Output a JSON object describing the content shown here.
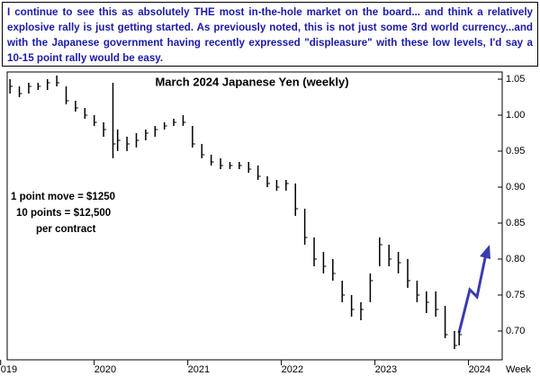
{
  "chart_data": {
    "type": "ohlc",
    "note": "I continue to see this as absolutely THE most in-the-hole market on the board... and think a relatively explosive rally is just getting started. As previously noted, this is not just some 3rd world currency...and with the Japanese government having recently expressed \"displeasure\" with these low levels, I'd say a 10-15 point rally would be easy.",
    "title": "March 2024 Japanese Yen (weekly)",
    "annotations": [
      "1 point move = $1250",
      "10 points = $12,500",
      "per contract"
    ],
    "x_label": "Week",
    "x": [
      2019.1,
      2019.2,
      2019.3,
      2019.4,
      2019.5,
      2019.6,
      2019.7,
      2019.8,
      2019.9,
      2020.0,
      2020.1,
      2020.2,
      2020.25,
      2020.35,
      2020.45,
      2020.55,
      2020.65,
      2020.75,
      2020.85,
      2020.95,
      2021.05,
      2021.15,
      2021.25,
      2021.35,
      2021.45,
      2021.55,
      2021.65,
      2021.75,
      2021.85,
      2021.95,
      2022.05,
      2022.15,
      2022.25,
      2022.35,
      2022.45,
      2022.55,
      2022.65,
      2022.75,
      2022.85,
      2022.95,
      2023.05,
      2023.15,
      2023.25,
      2023.35,
      2023.45,
      2023.55,
      2023.65,
      2023.75,
      2023.85,
      2023.9
    ],
    "high": [
      1.05,
      1.04,
      1.045,
      1.045,
      1.05,
      1.055,
      1.04,
      1.02,
      1.01,
      1.0,
      0.99,
      1.045,
      0.98,
      0.97,
      0.975,
      0.98,
      0.985,
      0.99,
      0.995,
      1.0,
      0.985,
      0.96,
      0.945,
      0.94,
      0.935,
      0.935,
      0.935,
      0.93,
      0.915,
      0.91,
      0.91,
      0.905,
      0.87,
      0.83,
      0.81,
      0.8,
      0.77,
      0.75,
      0.74,
      0.78,
      0.83,
      0.82,
      0.81,
      0.8,
      0.77,
      0.755,
      0.755,
      0.735,
      0.7,
      0.7
    ],
    "low": [
      1.03,
      1.025,
      1.03,
      1.035,
      1.035,
      1.04,
      1.015,
      1.005,
      0.995,
      0.985,
      0.97,
      0.94,
      0.95,
      0.95,
      0.955,
      0.965,
      0.97,
      0.98,
      0.985,
      0.985,
      0.955,
      0.94,
      0.93,
      0.925,
      0.925,
      0.925,
      0.92,
      0.91,
      0.9,
      0.895,
      0.895,
      0.86,
      0.82,
      0.79,
      0.78,
      0.77,
      0.74,
      0.72,
      0.715,
      0.74,
      0.79,
      0.79,
      0.78,
      0.76,
      0.74,
      0.725,
      0.72,
      0.69,
      0.675,
      0.68
    ],
    "close": [
      1.04,
      1.03,
      1.04,
      1.04,
      1.045,
      1.045,
      1.02,
      1.01,
      1.0,
      0.99,
      0.98,
      0.96,
      0.965,
      0.96,
      0.965,
      0.975,
      0.98,
      0.985,
      0.99,
      0.99,
      0.96,
      0.945,
      0.935,
      0.93,
      0.93,
      0.93,
      0.925,
      0.915,
      0.905,
      0.9,
      0.905,
      0.87,
      0.83,
      0.8,
      0.79,
      0.78,
      0.75,
      0.73,
      0.73,
      0.77,
      0.82,
      0.8,
      0.795,
      0.77,
      0.75,
      0.74,
      0.73,
      0.695,
      0.68,
      0.695
    ],
    "color": "#000000",
    "xlim": [
      2019.07,
      2024.36
    ],
    "ylim": [
      0.66,
      1.06
    ],
    "yticks": [
      1.05,
      {
        "value": 1,
        "label": "1.00"
      },
      0.95,
      {
        "value": 0.9,
        "label": "0.90"
      },
      0.85,
      {
        "value": 0.8,
        "label": "0.80"
      },
      0.75,
      {
        "value": 0.7,
        "label": "0.70"
      }
    ],
    "xticks": [
      {
        "value": 2019,
        "label": "019"
      },
      2020,
      2021,
      2022,
      2023,
      2024
    ]
  }
}
